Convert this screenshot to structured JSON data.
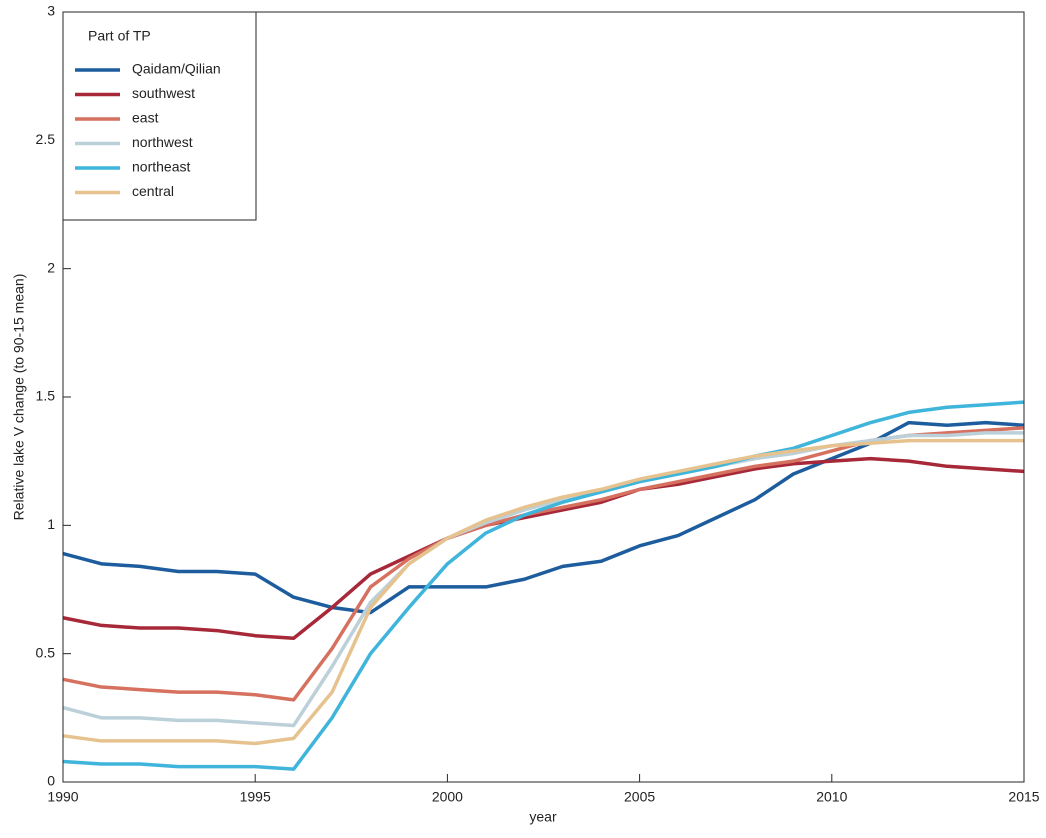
{
  "chart_data": {
    "type": "line",
    "x_label": "year",
    "y_label": "Relative lake V change (to 90-15 mean)",
    "legend_title": "Part of TP",
    "legend": "upper left",
    "x": [
      1990,
      1991,
      1992,
      1993,
      1994,
      1995,
      1996,
      1997,
      1998,
      1999,
      2000,
      2001,
      2002,
      2003,
      2004,
      2005,
      2006,
      2007,
      2008,
      2009,
      2010,
      2011,
      2012,
      2013,
      2014,
      2015
    ],
    "xlim": [
      1990,
      2015
    ],
    "xticks": [
      1990,
      1995,
      2000,
      2005,
      2010,
      2015
    ],
    "ylim": [
      0,
      3
    ],
    "yticks": [
      0,
      0.5,
      1,
      1.5,
      2,
      2.5,
      3
    ],
    "series": [
      {
        "name": "Qaidam/Qilian",
        "color": "#1d5d9e",
        "values": [
          0.89,
          0.85,
          0.84,
          0.82,
          0.82,
          0.81,
          0.72,
          0.68,
          0.66,
          0.76,
          0.76,
          0.76,
          0.79,
          0.84,
          0.86,
          0.92,
          0.96,
          1.03,
          1.1,
          1.2,
          1.26,
          1.32,
          1.4,
          1.39,
          1.4,
          1.39
        ]
      },
      {
        "name": "southwest",
        "color": "#a72838",
        "values": [
          0.64,
          0.61,
          0.6,
          0.6,
          0.59,
          0.57,
          0.56,
          0.68,
          0.81,
          0.88,
          0.95,
          1.0,
          1.03,
          1.06,
          1.09,
          1.14,
          1.16,
          1.19,
          1.22,
          1.24,
          1.25,
          1.26,
          1.25,
          1.23,
          1.22,
          1.21
        ]
      },
      {
        "name": "east",
        "color": "#d6705f",
        "values": [
          0.4,
          0.37,
          0.36,
          0.35,
          0.35,
          0.34,
          0.32,
          0.52,
          0.76,
          0.87,
          0.95,
          1.0,
          1.04,
          1.07,
          1.1,
          1.14,
          1.17,
          1.2,
          1.23,
          1.25,
          1.29,
          1.33,
          1.35,
          1.36,
          1.37,
          1.38
        ]
      },
      {
        "name": "northwest",
        "color": "#bcd0d9",
        "values": [
          0.29,
          0.25,
          0.25,
          0.24,
          0.24,
          0.23,
          0.22,
          0.45,
          0.7,
          0.85,
          0.95,
          1.01,
          1.06,
          1.1,
          1.13,
          1.17,
          1.2,
          1.23,
          1.26,
          1.28,
          1.31,
          1.33,
          1.35,
          1.35,
          1.36,
          1.36
        ]
      },
      {
        "name": "northeast",
        "color": "#3fb5dc",
        "values": [
          0.08,
          0.07,
          0.07,
          0.06,
          0.06,
          0.06,
          0.05,
          0.25,
          0.5,
          0.68,
          0.85,
          0.97,
          1.04,
          1.09,
          1.13,
          1.17,
          1.2,
          1.23,
          1.27,
          1.3,
          1.35,
          1.4,
          1.44,
          1.46,
          1.47,
          1.48
        ]
      },
      {
        "name": "central",
        "color": "#e6c28e",
        "values": [
          0.18,
          0.16,
          0.16,
          0.16,
          0.16,
          0.15,
          0.17,
          0.35,
          0.68,
          0.85,
          0.95,
          1.02,
          1.07,
          1.11,
          1.14,
          1.18,
          1.21,
          1.24,
          1.27,
          1.29,
          1.31,
          1.32,
          1.33,
          1.33,
          1.33,
          1.33
        ]
      }
    ]
  }
}
